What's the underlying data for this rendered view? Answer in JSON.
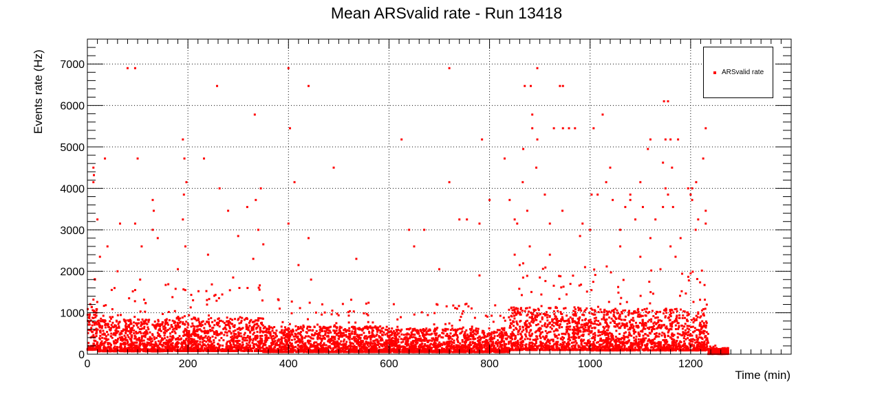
{
  "chart_data": {
    "type": "scatter",
    "title": "Mean ARSvalid rate - Run 13418",
    "xlabel": "Time (min)",
    "ylabel": "Events rate (Hz)",
    "xlim": [
      0,
      1400
    ],
    "ylim": [
      0,
      7600
    ],
    "xticks": [
      0,
      200,
      400,
      600,
      800,
      1000,
      1200
    ],
    "yticks": [
      0,
      1000,
      2000,
      3000,
      4000,
      5000,
      6000,
      7000
    ],
    "grid": true,
    "legend_position": "top-right",
    "series": [
      {
        "name": "ARSvalid rate",
        "color": "#ff0000",
        "outliers": [
          [
            80,
            6900
          ],
          [
            95,
            6900
          ],
          [
            400,
            6900
          ],
          [
            720,
            6900
          ],
          [
            895,
            6900
          ],
          [
            258,
            6470
          ],
          [
            440,
            6470
          ],
          [
            870,
            6470
          ],
          [
            882,
            6470
          ],
          [
            940,
            6470
          ],
          [
            946,
            6470
          ],
          [
            1147,
            6100
          ],
          [
            1155,
            6100
          ],
          [
            333,
            5780
          ],
          [
            885,
            5780
          ],
          [
            1025,
            5780
          ],
          [
            403,
            5450
          ],
          [
            885,
            5450
          ],
          [
            928,
            5450
          ],
          [
            946,
            5450
          ],
          [
            958,
            5450
          ],
          [
            970,
            5450
          ],
          [
            1007,
            5450
          ],
          [
            1230,
            5450
          ],
          [
            190,
            5180
          ],
          [
            625,
            5180
          ],
          [
            785,
            5180
          ],
          [
            895,
            5180
          ],
          [
            1120,
            5180
          ],
          [
            1150,
            5180
          ],
          [
            1160,
            5180
          ],
          [
            1175,
            5180
          ],
          [
            867,
            4950
          ],
          [
            1115,
            4950
          ],
          [
            35,
            4720
          ],
          [
            100,
            4720
          ],
          [
            193,
            4720
          ],
          [
            232,
            4720
          ],
          [
            830,
            4720
          ],
          [
            1225,
            4720
          ],
          [
            1145,
            4620
          ],
          [
            12,
            4500
          ],
          [
            490,
            4500
          ],
          [
            893,
            4500
          ],
          [
            1040,
            4500
          ],
          [
            1163,
            4500
          ],
          [
            13,
            4320
          ],
          [
            12,
            4150
          ],
          [
            197,
            4150
          ],
          [
            412,
            4150
          ],
          [
            720,
            4150
          ],
          [
            866,
            4150
          ],
          [
            1032,
            4150
          ],
          [
            1100,
            4150
          ],
          [
            1211,
            4150
          ],
          [
            263,
            4000
          ],
          [
            345,
            4000
          ],
          [
            1150,
            4000
          ],
          [
            1195,
            4000
          ],
          [
            1203,
            4000
          ],
          [
            192,
            3850
          ],
          [
            910,
            3850
          ],
          [
            1003,
            3850
          ],
          [
            1015,
            3850
          ],
          [
            1080,
            3850
          ],
          [
            1155,
            3850
          ],
          [
            1200,
            3850
          ],
          [
            130,
            3720
          ],
          [
            335,
            3720
          ],
          [
            800,
            3720
          ],
          [
            840,
            3720
          ],
          [
            1045,
            3720
          ],
          [
            1080,
            3720
          ],
          [
            1203,
            3720
          ],
          [
            318,
            3550
          ],
          [
            1070,
            3550
          ],
          [
            1105,
            3550
          ],
          [
            1145,
            3550
          ],
          [
            1165,
            3550
          ],
          [
            132,
            3460
          ],
          [
            280,
            3460
          ],
          [
            875,
            3460
          ],
          [
            945,
            3460
          ],
          [
            1230,
            3460
          ],
          [
            20,
            3250
          ],
          [
            190,
            3250
          ],
          [
            740,
            3250
          ],
          [
            755,
            3250
          ],
          [
            850,
            3250
          ],
          [
            1090,
            3250
          ],
          [
            1130,
            3250
          ],
          [
            1215,
            3250
          ],
          [
            65,
            3150
          ],
          [
            95,
            3150
          ],
          [
            400,
            3150
          ],
          [
            780,
            3150
          ],
          [
            855,
            3150
          ],
          [
            920,
            3150
          ],
          [
            985,
            3150
          ],
          [
            1230,
            3150
          ],
          [
            130,
            3000
          ],
          [
            340,
            3000
          ],
          [
            640,
            3000
          ],
          [
            670,
            3000
          ],
          [
            1000,
            3000
          ],
          [
            1060,
            3000
          ],
          [
            1210,
            3000
          ],
          [
            140,
            2800
          ],
          [
            300,
            2850
          ],
          [
            440,
            2800
          ],
          [
            980,
            2850
          ],
          [
            1120,
            2800
          ],
          [
            1180,
            2800
          ],
          [
            40,
            2600
          ],
          [
            108,
            2600
          ],
          [
            195,
            2600
          ],
          [
            350,
            2650
          ],
          [
            650,
            2600
          ],
          [
            880,
            2600
          ],
          [
            1060,
            2600
          ],
          [
            1160,
            2600
          ],
          [
            25,
            2350
          ],
          [
            240,
            2400
          ],
          [
            330,
            2300
          ],
          [
            535,
            2300
          ],
          [
            850,
            2400
          ],
          [
            920,
            2400
          ],
          [
            1100,
            2350
          ],
          [
            1170,
            2350
          ],
          [
            60,
            2000
          ],
          [
            180,
            2050
          ],
          [
            420,
            2150
          ],
          [
            700,
            2050
          ],
          [
            860,
            2150
          ],
          [
            990,
            2100
          ],
          [
            1140,
            2050
          ],
          [
            15,
            1800
          ],
          [
            105,
            1800
          ],
          [
            290,
            1850
          ],
          [
            445,
            1800
          ],
          [
            780,
            1900
          ],
          [
            900,
            1850
          ],
          [
            1200,
            1950
          ]
        ],
        "dense_bands": [
          {
            "x": [
              0,
              20
            ],
            "center": 350,
            "spread": 450
          },
          {
            "x": [
              20,
              150
            ],
            "center": 230,
            "spread": 320
          },
          {
            "x": [
              150,
              350
            ],
            "center": 250,
            "spread": 340
          },
          {
            "x": [
              350,
              600
            ],
            "center": 170,
            "spread": 260
          },
          {
            "x": [
              600,
              840
            ],
            "center": 160,
            "spread": 240
          },
          {
            "x": [
              840,
              1000
            ],
            "center": 330,
            "spread": 430
          },
          {
            "x": [
              1000,
              1235
            ],
            "center": 300,
            "spread": 420
          },
          {
            "x": [
              1235,
              1275
            ],
            "center": 20,
            "spread": 60
          }
        ]
      }
    ]
  }
}
